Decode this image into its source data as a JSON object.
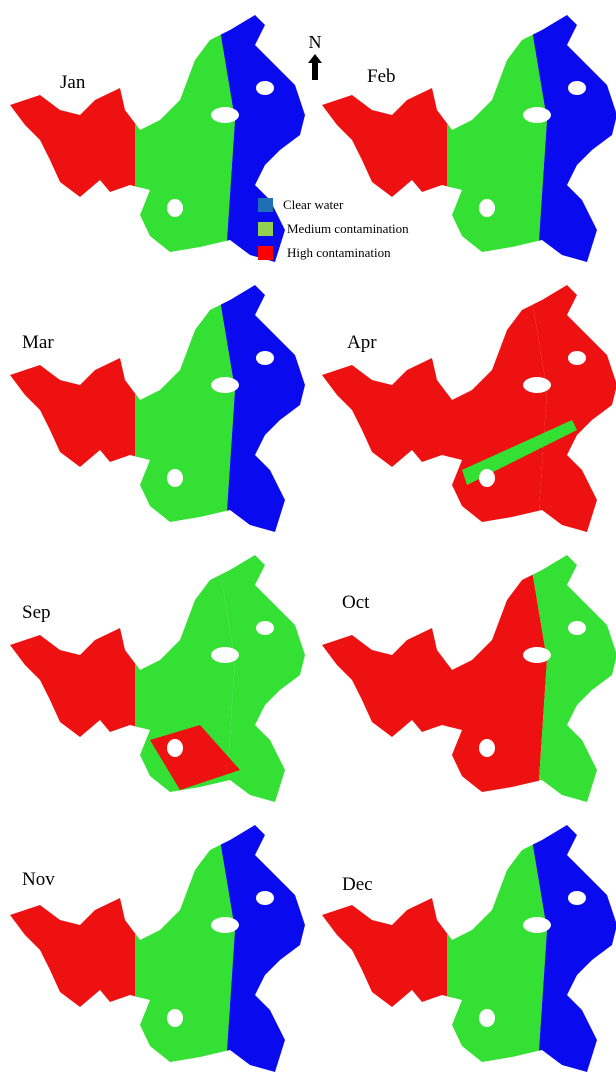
{
  "panels": [
    {
      "label": "Jan"
    },
    {
      "label": "Feb"
    },
    {
      "label": "Mar"
    },
    {
      "label": "Apr"
    },
    {
      "label": "Sep"
    },
    {
      "label": "Oct"
    },
    {
      "label": "Nov"
    },
    {
      "label": "Dec"
    }
  ],
  "north": "N",
  "legend": [
    {
      "label": "Clear water"
    },
    {
      "label": "Medium contamination"
    },
    {
      "label": "High contamination"
    }
  ]
}
